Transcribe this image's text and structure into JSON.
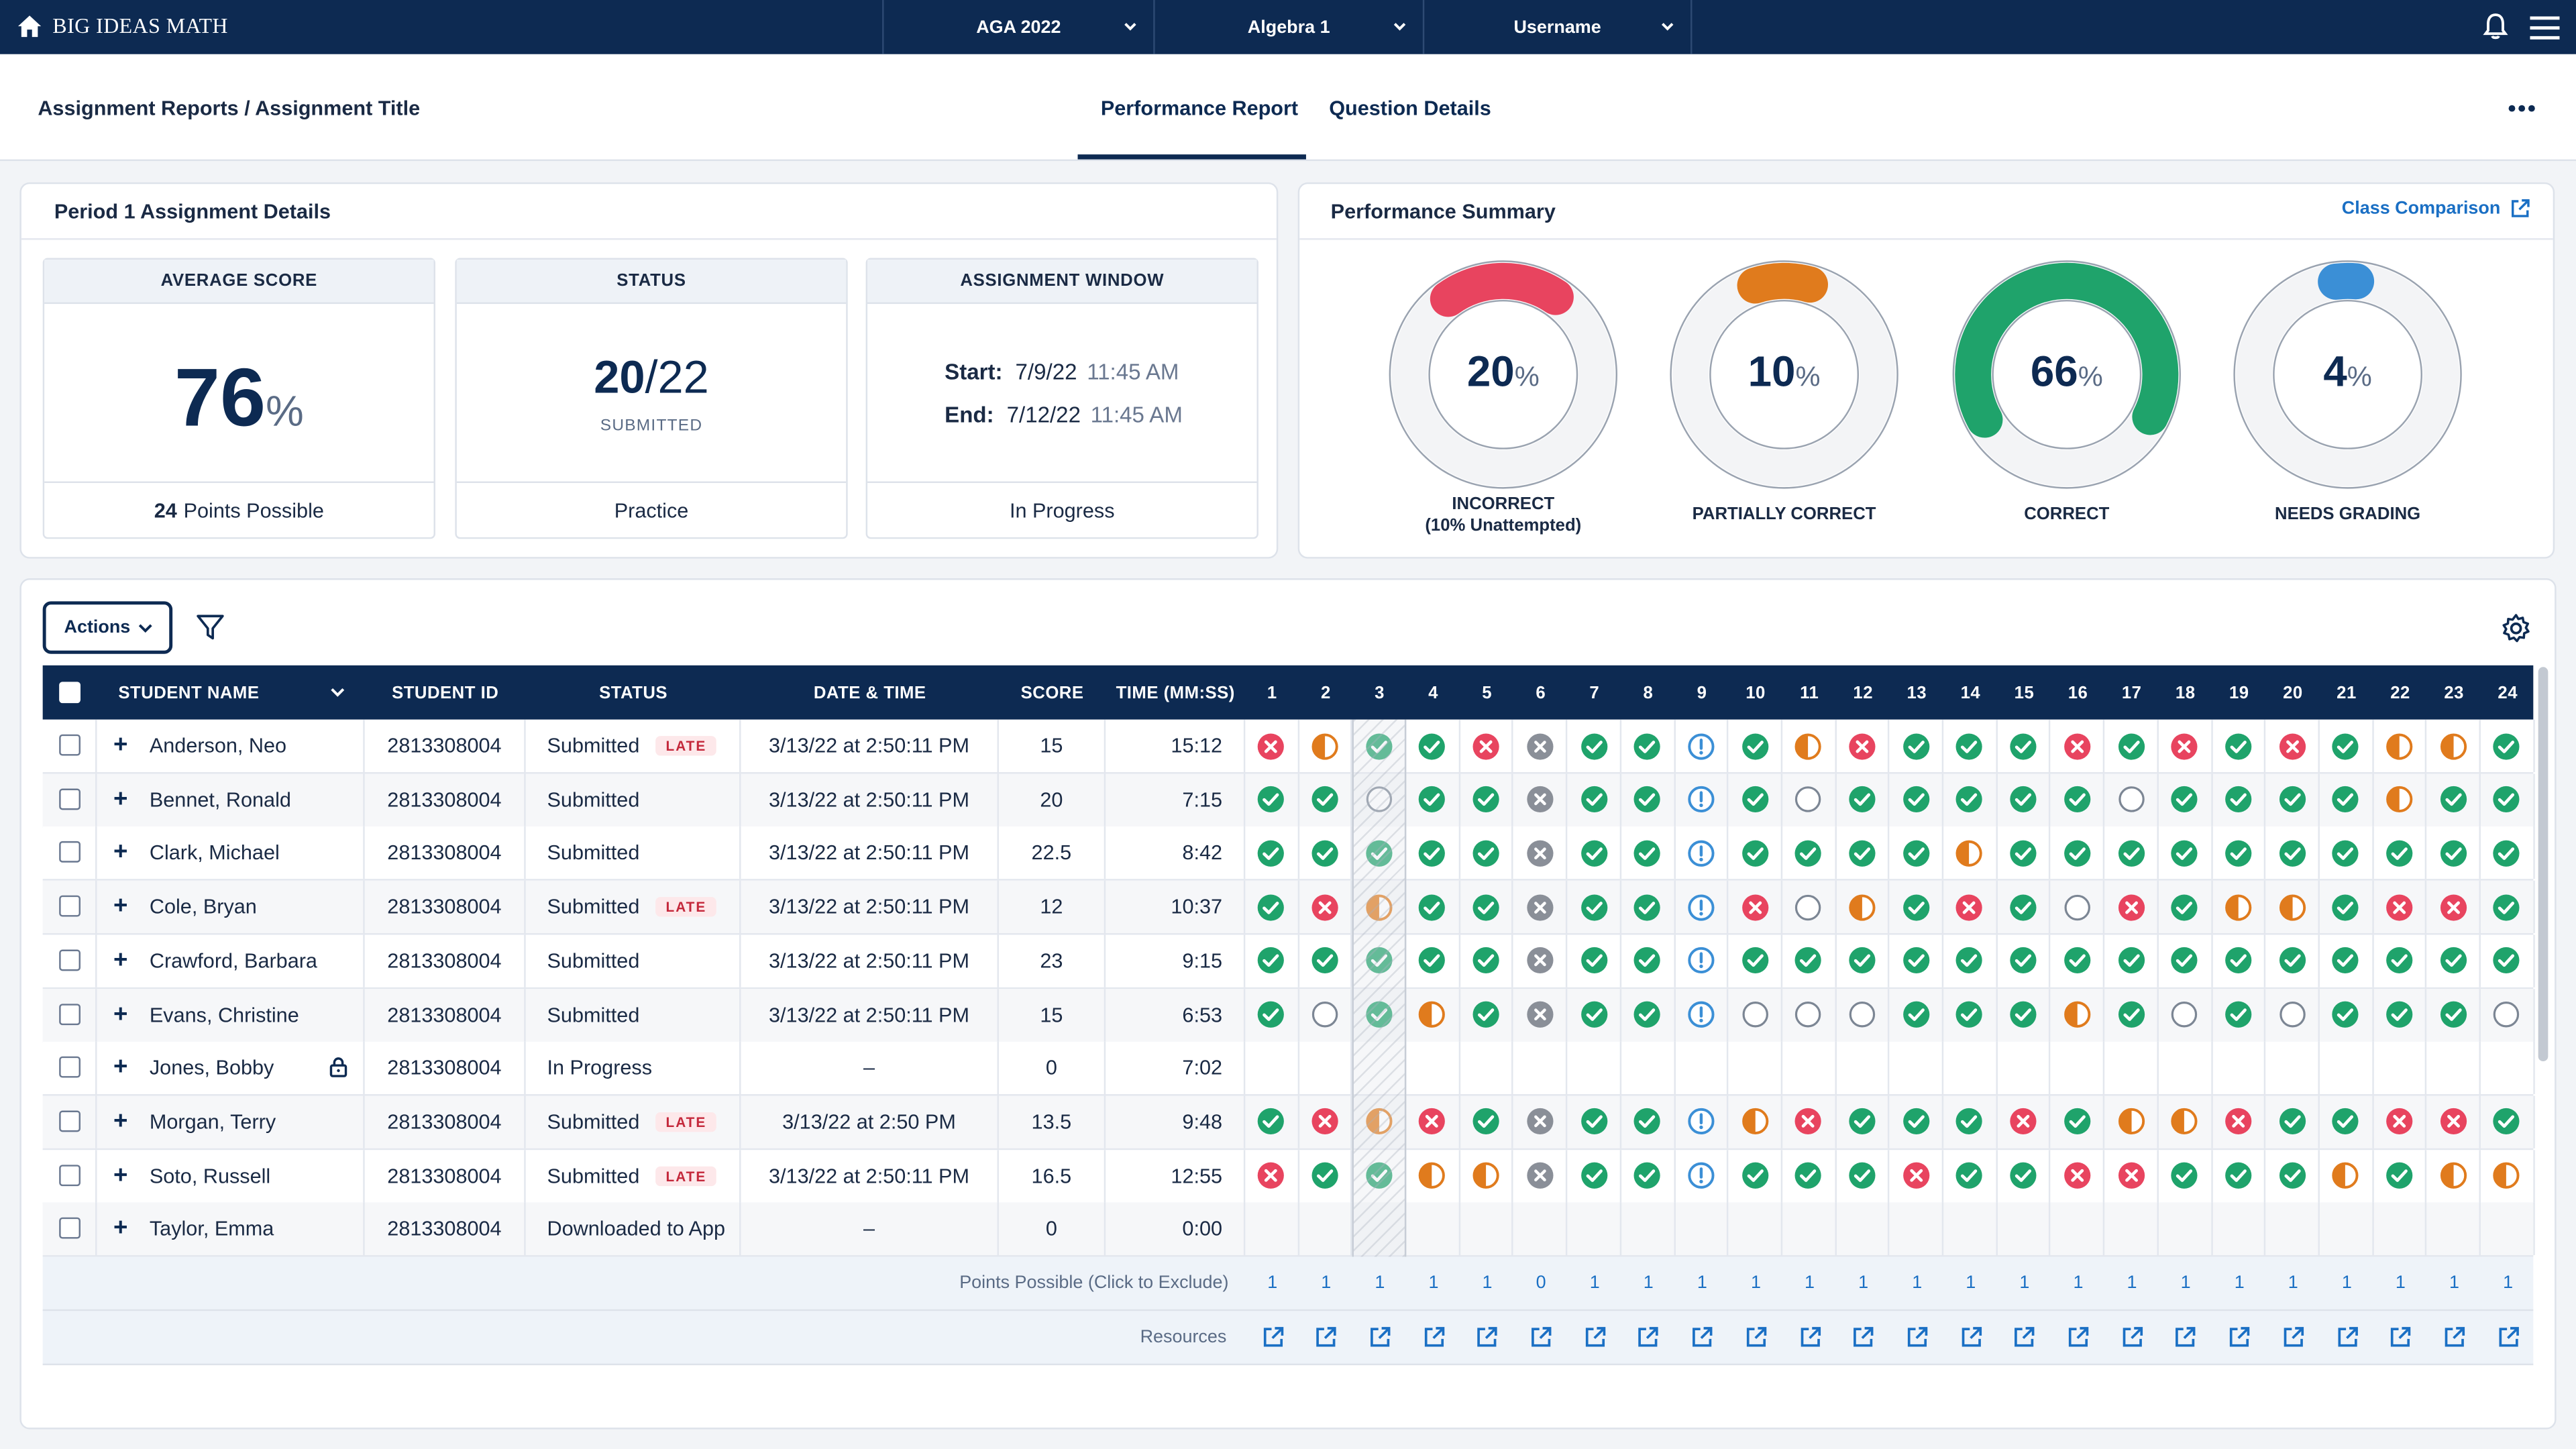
{
  "topbar": {
    "brand": "BIG IDEAS MATH",
    "program": "AGA 2022",
    "course": "Algebra 1",
    "user": "Username"
  },
  "header": {
    "breadcrumb": "Assignment Reports / Assignment Title",
    "tabs": [
      "Performance Report",
      "Question Details"
    ],
    "active_tab": "Performance Report"
  },
  "details": {
    "title": "Period 1 Assignment Details",
    "average_score": {
      "label": "AVERAGE SCORE",
      "value": "76",
      "unit": "%",
      "footer_num": "24",
      "footer_text": "Points Possible"
    },
    "status": {
      "label": "STATUS",
      "submitted": "20",
      "total": "/22",
      "sub": "SUBMITTED",
      "footer": "Practice"
    },
    "window": {
      "label": "ASSIGNMENT WINDOW",
      "start_label": "Start:",
      "start_date": "7/9/22",
      "start_time": "11:45 AM",
      "end_label": "End:",
      "end_date": "7/12/22",
      "end_time": "11:45 AM",
      "footer": "In Progress"
    }
  },
  "summary": {
    "title": "Performance Summary",
    "class_comparison": "Class Comparison",
    "donuts": [
      {
        "value": "20",
        "unit": "%",
        "fraction": 0.2,
        "color": "#e8445f",
        "label": "INCORRECT",
        "label2": "(10% Unattempted)"
      },
      {
        "value": "10",
        "unit": "%",
        "fraction": 0.1,
        "color": "#e07b1d",
        "label": "PARTIALLY CORRECT",
        "label2": ""
      },
      {
        "value": "66",
        "unit": "%",
        "fraction": 0.66,
        "color": "#1fa36b",
        "label": "CORRECT",
        "label2": ""
      },
      {
        "value": "4",
        "unit": "%",
        "fraction": 0.04,
        "color": "#3b8fd6",
        "label": "NEEDS GRADING",
        "label2": ""
      }
    ]
  },
  "toolbar": {
    "actions_label": "Actions"
  },
  "table": {
    "headers": {
      "name": "STUDENT NAME",
      "id": "STUDENT ID",
      "status": "STATUS",
      "datetime": "DATE & TIME",
      "score": "SCORE",
      "time": "TIME (MM:SS)"
    },
    "questions": [
      "1",
      "2",
      "3",
      "4",
      "5",
      "6",
      "7",
      "8",
      "9",
      "10",
      "11",
      "12",
      "13",
      "14",
      "15",
      "16",
      "17",
      "18",
      "19",
      "20",
      "21",
      "22",
      "23",
      "24"
    ],
    "late_label": "LATE",
    "rows": [
      {
        "name": "Anderson, Neo",
        "id": "2813308004",
        "status": "Submitted",
        "late": true,
        "datetime": "3/13/22 at 2:50:11 PM",
        "score": "15",
        "time": "15:12",
        "locked": false,
        "marks": [
          "x",
          "p",
          "c",
          "c",
          "x",
          "g",
          "c",
          "c",
          "n",
          "c",
          "p",
          "x",
          "c",
          "c",
          "c",
          "x",
          "c",
          "x",
          "c",
          "x",
          "c",
          "p",
          "p",
          "c"
        ]
      },
      {
        "name": "Bennet, Ronald",
        "id": "2813308004",
        "status": "Submitted",
        "late": false,
        "datetime": "3/13/22 at 2:50:11 PM",
        "score": "20",
        "time": "7:15",
        "locked": false,
        "marks": [
          "c",
          "c",
          "o",
          "c",
          "c",
          "g",
          "c",
          "c",
          "n",
          "c",
          "o",
          "c",
          "c",
          "c",
          "c",
          "c",
          "o",
          "c",
          "c",
          "c",
          "c",
          "p",
          "c",
          "c"
        ]
      },
      {
        "name": "Clark, Michael",
        "id": "2813308004",
        "status": "Submitted",
        "late": false,
        "datetime": "3/13/22 at 2:50:11 PM",
        "score": "22.5",
        "time": "8:42",
        "locked": false,
        "marks": [
          "c",
          "c",
          "c",
          "c",
          "c",
          "g",
          "c",
          "c",
          "n",
          "c",
          "c",
          "c",
          "c",
          "p",
          "c",
          "c",
          "c",
          "c",
          "c",
          "c",
          "c",
          "c",
          "c",
          "c"
        ]
      },
      {
        "name": "Cole, Bryan",
        "id": "2813308004",
        "status": "Submitted",
        "late": true,
        "datetime": "3/13/22 at 2:50:11 PM",
        "score": "12",
        "time": "10:37",
        "locked": false,
        "marks": [
          "c",
          "x",
          "p",
          "c",
          "c",
          "g",
          "c",
          "c",
          "n",
          "x",
          "o",
          "p",
          "c",
          "x",
          "c",
          "o",
          "x",
          "c",
          "p",
          "p",
          "c",
          "x",
          "x",
          "c"
        ]
      },
      {
        "name": "Crawford, Barbara",
        "id": "2813308004",
        "status": "Submitted",
        "late": false,
        "datetime": "3/13/22 at 2:50:11 PM",
        "score": "23",
        "time": "9:15",
        "locked": false,
        "marks": [
          "c",
          "c",
          "c",
          "c",
          "c",
          "g",
          "c",
          "c",
          "n",
          "c",
          "c",
          "c",
          "c",
          "c",
          "c",
          "c",
          "c",
          "c",
          "c",
          "c",
          "c",
          "c",
          "c",
          "c"
        ]
      },
      {
        "name": "Evans, Christine",
        "id": "2813308004",
        "status": "Submitted",
        "late": false,
        "datetime": "3/13/22 at 2:50:11 PM",
        "score": "15",
        "time": "6:53",
        "locked": false,
        "marks": [
          "c",
          "o",
          "c",
          "p",
          "c",
          "g",
          "c",
          "c",
          "n",
          "o",
          "o",
          "o",
          "c",
          "c",
          "c",
          "p",
          "c",
          "o",
          "c",
          "o",
          "c",
          "c",
          "c",
          "o"
        ]
      },
      {
        "name": "Jones, Bobby",
        "id": "2813308004",
        "status": "In Progress",
        "late": false,
        "datetime": "–",
        "score": "0",
        "time": "7:02",
        "locked": true,
        "marks": [
          "",
          "",
          "",
          "",
          "",
          "",
          "",
          "",
          "",
          "",
          "",
          "",
          "",
          "",
          "",
          "",
          "",
          "",
          "",
          "",
          "",
          "",
          "",
          ""
        ]
      },
      {
        "name": "Morgan, Terry",
        "id": "2813308004",
        "status": "Submitted",
        "late": true,
        "datetime": "3/13/22 at 2:50 PM",
        "score": "13.5",
        "time": "9:48",
        "locked": false,
        "marks": [
          "c",
          "x",
          "p",
          "x",
          "c",
          "g",
          "c",
          "c",
          "n",
          "p",
          "x",
          "c",
          "c",
          "c",
          "x",
          "c",
          "p",
          "p",
          "x",
          "c",
          "c",
          "x",
          "x",
          "c"
        ]
      },
      {
        "name": "Soto, Russell",
        "id": "2813308004",
        "status": "Submitted",
        "late": true,
        "datetime": "3/13/22 at 2:50:11 PM",
        "score": "16.5",
        "time": "12:55",
        "locked": false,
        "marks": [
          "x",
          "c",
          "c",
          "p",
          "p",
          "g",
          "c",
          "c",
          "n",
          "c",
          "c",
          "c",
          "x",
          "c",
          "c",
          "x",
          "x",
          "c",
          "c",
          "c",
          "p",
          "c",
          "p",
          "p"
        ]
      },
      {
        "name": "Taylor, Emma",
        "id": "2813308004",
        "status": "Downloaded to App",
        "late": false,
        "datetime": "–",
        "score": "0",
        "time": "0:00",
        "locked": false,
        "marks": [
          "",
          "",
          "",
          "",
          "",
          "",
          "",
          "",
          "",
          "",
          "",
          "",
          "",
          "",
          "",
          "",
          "",
          "",
          "",
          "",
          "",
          "",
          "",
          ""
        ]
      }
    ],
    "points_label": "Points Possible (Click to Exclude)",
    "points": [
      "1",
      "1",
      "1",
      "1",
      "1",
      "0",
      "1",
      "1",
      "1",
      "1",
      "1",
      "1",
      "1",
      "1",
      "1",
      "1",
      "1",
      "1",
      "1",
      "1",
      "1",
      "1",
      "1",
      "1"
    ],
    "resources_label": "Resources"
  },
  "colors": {
    "navy": "#0d2a52",
    "correct": "#1fa36b",
    "incorrect": "#e8445f",
    "partial": "#e07b1d",
    "needs_grading": "#3b8fd6",
    "unattempted": "#8a8f98"
  }
}
